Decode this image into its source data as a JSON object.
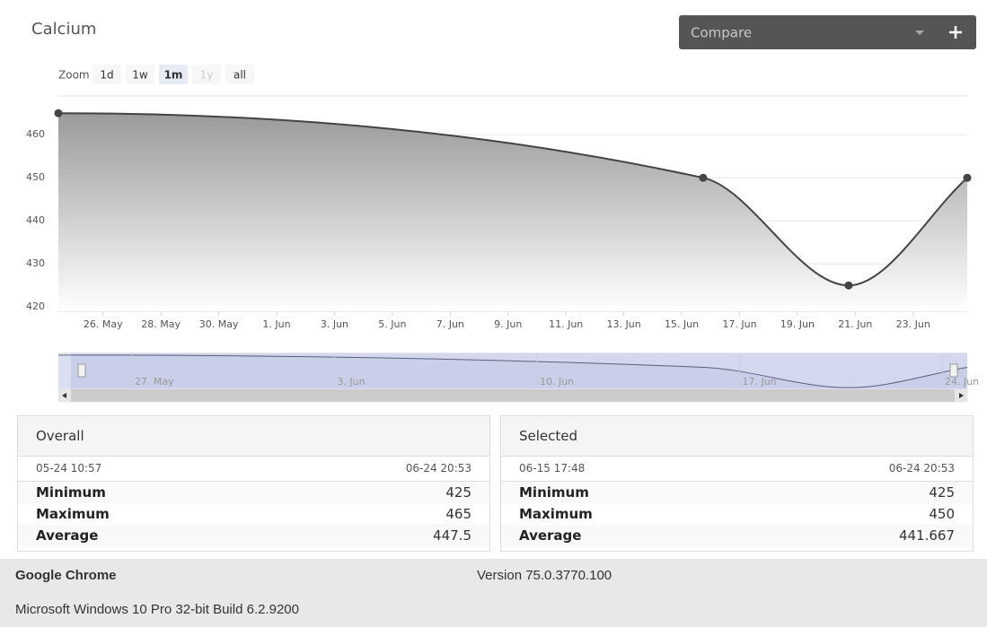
{
  "header": {
    "title": "Calcium",
    "compare": "Compare"
  },
  "zoom": {
    "label": "Zoom",
    "buttons": [
      {
        "label": "1d",
        "state": "normal"
      },
      {
        "label": "1w",
        "state": "normal"
      },
      {
        "label": "1m",
        "state": "active"
      },
      {
        "label": "1y",
        "state": "disabled"
      },
      {
        "label": "all",
        "state": "normal"
      }
    ]
  },
  "chart": {
    "type": "area",
    "x": [
      "05-24 10:57",
      "06-15 17:48",
      "06-20 18:30",
      "06-24 20:53"
    ],
    "values": [
      465,
      450,
      425,
      450
    ],
    "xlim": [
      "05-24 10:57",
      "06-24 20:53"
    ],
    "ylim": [
      419,
      469
    ],
    "yticks": [
      420,
      430,
      440,
      450,
      460
    ],
    "xticks": [
      {
        "value": "05-26 00:00",
        "label": "26. May"
      },
      {
        "value": "05-28 00:00",
        "label": "28. May"
      },
      {
        "value": "05-30 00:00",
        "label": "30. May"
      },
      {
        "value": "06-01 00:00",
        "label": "1. Jun"
      },
      {
        "value": "06-03 00:00",
        "label": "3. Jun"
      },
      {
        "value": "06-05 00:00",
        "label": "5. Jun"
      },
      {
        "value": "06-07 00:00",
        "label": "7. Jun"
      },
      {
        "value": "06-09 00:00",
        "label": "9. Jun"
      },
      {
        "value": "06-11 00:00",
        "label": "11. Jun"
      },
      {
        "value": "06-13 00:00",
        "label": "13. Jun"
      },
      {
        "value": "06-15 00:00",
        "label": "15. Jun"
      },
      {
        "value": "06-17 00:00",
        "label": "17. Jun"
      },
      {
        "value": "06-19 00:00",
        "label": "19. Jun"
      },
      {
        "value": "06-21 00:00",
        "label": "21. Jun"
      },
      {
        "value": "06-23 00:00",
        "label": "23. Jun"
      }
    ],
    "grid": true,
    "color": "#444444",
    "navigator": {
      "ylim": [
        423,
        467
      ],
      "xticks": [
        {
          "value": "05-27 00:00",
          "label": "27. May"
        },
        {
          "value": "06-03 00:00",
          "label": "3. Jun"
        },
        {
          "value": "06-10 00:00",
          "label": "10. Jun"
        },
        {
          "value": "06-17 00:00",
          "label": "17. Jun"
        },
        {
          "value": "06-24 00:00",
          "label": "24. Jun"
        }
      ]
    }
  },
  "panels": [
    {
      "title": "Overall",
      "from": "05-24 10:57",
      "to": "06-24 20:53",
      "rows": [
        {
          "label": "Minimum",
          "value": 425
        },
        {
          "label": "Maximum",
          "value": 465
        },
        {
          "label": "Average",
          "value": 447.5
        }
      ]
    },
    {
      "title": "Selected",
      "from": "06-15 17:48",
      "to": "06-24 20:53",
      "rows": [
        {
          "label": "Minimum",
          "value": 425
        },
        {
          "label": "Maximum",
          "value": 450
        },
        {
          "label": "Average",
          "value": 441.667
        }
      ]
    }
  ],
  "footer": {
    "browser": "Google Chrome",
    "version": "Version 75.0.3770.100",
    "os": "Microsoft Windows 10 Pro 32-bit Build 6.2.9200"
  }
}
